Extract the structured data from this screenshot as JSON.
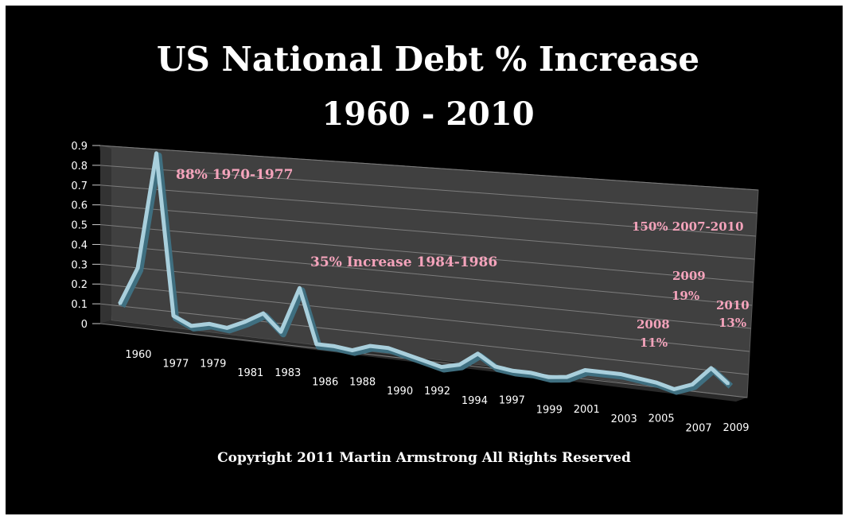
{
  "chart_data": {
    "type": "line",
    "title": "US National Debt % Increase",
    "subtitle": "1960 - 2010",
    "xlabel": "",
    "ylabel": "",
    "ylim": [
      0,
      0.9
    ],
    "y_ticks": [
      "0",
      "0.1",
      "0.2",
      "0.3",
      "0.4",
      "0.5",
      "0.6",
      "0.7",
      "0.8",
      "0.9"
    ],
    "x_tick_labels": [
      "1960",
      "1977",
      "1979",
      "1981",
      "1983",
      "1986",
      "1988",
      "1990",
      "1992",
      "1994",
      "1997",
      "1999",
      "2001",
      "2003",
      "2005",
      "2007",
      "2009"
    ],
    "grid": true,
    "three_d": true,
    "values": [
      0.11,
      0.3,
      0.88,
      0.08,
      0.04,
      0.06,
      0.05,
      0.09,
      0.14,
      0.06,
      0.28,
      0.02,
      0.02,
      0.01,
      0.04,
      0.04,
      0.02,
      0.0,
      -0.02,
      0.0,
      0.06,
      0.01,
      0.0,
      0.0,
      -0.01,
      0.0,
      0.04,
      0.04,
      0.04,
      0.03,
      0.02,
      0.0,
      0.03,
      0.11,
      0.05
    ],
    "series_color": "#a9cfdc",
    "annotations": [
      {
        "text": "88% 1970-1977"
      },
      {
        "text": "35% Increase 1984-1986"
      },
      {
        "text": "150% 2007-2010"
      },
      {
        "text": "2009"
      },
      {
        "text": "19%"
      },
      {
        "text": "2010"
      },
      {
        "text": "13%"
      },
      {
        "text": "2008"
      },
      {
        "text": "11%"
      }
    ],
    "annotation_color": "#f4a3bb",
    "footer": "Copyright 2011 Martin Armstrong All Rights Reserved"
  }
}
